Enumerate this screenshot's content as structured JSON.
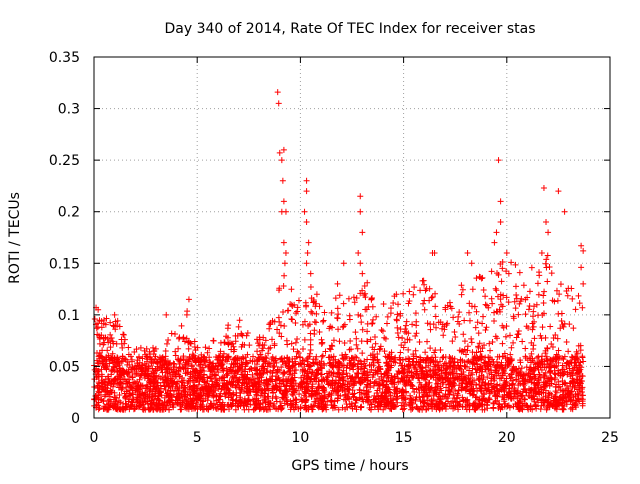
{
  "chart_data": {
    "type": "scatter",
    "title": "Day 340 of 2014, Rate Of TEC Index for receiver stas",
    "xlabel": "GPS time / hours",
    "ylabel": "ROTI / TECUs",
    "xlim": [
      0,
      25
    ],
    "ylim": [
      0,
      0.35
    ],
    "xticks": [
      0,
      5,
      10,
      15,
      20,
      25
    ],
    "xtick_labels": [
      "0",
      "5",
      "10",
      "15",
      "20",
      "25"
    ],
    "yticks": [
      0,
      0.05,
      0.1,
      0.15,
      0.2,
      0.25,
      0.3,
      0.35
    ],
    "ytick_labels": [
      "0",
      "0.05",
      "0.1",
      "0.15",
      "0.2",
      "0.25",
      "0.3",
      "0.35"
    ],
    "grid": true,
    "marker": "+",
    "color": "#ff0000",
    "series": [
      {
        "name": "ROTI",
        "x_range": [
          0,
          23.7
        ],
        "baseline_range": [
          0.01,
          0.06
        ],
        "envelope": [
          [
            0.0,
            0.1
          ],
          [
            0.5,
            0.09
          ],
          [
            1.0,
            0.09
          ],
          [
            1.5,
            0.08
          ],
          [
            2.0,
            0.06
          ],
          [
            3.0,
            0.06
          ],
          [
            4.0,
            0.08
          ],
          [
            4.5,
            0.1
          ],
          [
            5.0,
            0.06
          ],
          [
            6.0,
            0.07
          ],
          [
            7.0,
            0.09
          ],
          [
            8.0,
            0.07
          ],
          [
            8.7,
            0.1
          ],
          [
            9.0,
            0.14
          ],
          [
            9.5,
            0.12
          ],
          [
            10.0,
            0.12
          ],
          [
            10.5,
            0.12
          ],
          [
            11.0,
            0.1
          ],
          [
            12.0,
            0.13
          ],
          [
            12.5,
            0.12
          ],
          [
            13.0,
            0.13
          ],
          [
            14.0,
            0.11
          ],
          [
            15.0,
            0.12
          ],
          [
            16.0,
            0.13
          ],
          [
            17.0,
            0.1
          ],
          [
            18.0,
            0.13
          ],
          [
            19.0,
            0.13
          ],
          [
            20.0,
            0.15
          ],
          [
            21.0,
            0.14
          ],
          [
            22.0,
            0.15
          ],
          [
            23.0,
            0.12
          ],
          [
            23.7,
            0.11
          ]
        ],
        "points": [
          [
            8.9,
            0.316
          ],
          [
            8.95,
            0.305
          ],
          [
            9.0,
            0.257
          ],
          [
            9.1,
            0.25
          ],
          [
            9.2,
            0.26
          ],
          [
            9.15,
            0.23
          ],
          [
            9.2,
            0.21
          ],
          [
            9.3,
            0.2
          ],
          [
            9.1,
            0.2
          ],
          [
            9.2,
            0.17
          ],
          [
            9.25,
            0.15
          ],
          [
            9.3,
            0.16
          ],
          [
            10.3,
            0.23
          ],
          [
            10.3,
            0.22
          ],
          [
            10.2,
            0.2
          ],
          [
            10.3,
            0.19
          ],
          [
            10.4,
            0.17
          ],
          [
            10.35,
            0.16
          ],
          [
            10.3,
            0.15
          ],
          [
            10.5,
            0.14
          ],
          [
            10.8,
            0.12
          ],
          [
            12.9,
            0.215
          ],
          [
            12.9,
            0.2
          ],
          [
            13.0,
            0.18
          ],
          [
            12.8,
            0.16
          ],
          [
            12.9,
            0.15
          ],
          [
            13.0,
            0.14
          ],
          [
            12.1,
            0.15
          ],
          [
            11.8,
            0.13
          ],
          [
            16.4,
            0.16
          ],
          [
            16.5,
            0.16
          ],
          [
            18.1,
            0.16
          ],
          [
            18.3,
            0.15
          ],
          [
            19.6,
            0.25
          ],
          [
            19.7,
            0.21
          ],
          [
            19.7,
            0.19
          ],
          [
            19.5,
            0.18
          ],
          [
            19.4,
            0.17
          ],
          [
            20.0,
            0.16
          ],
          [
            20.1,
            0.14
          ],
          [
            21.8,
            0.223
          ],
          [
            22.5,
            0.22
          ],
          [
            21.9,
            0.19
          ],
          [
            22.0,
            0.18
          ],
          [
            21.7,
            0.16
          ],
          [
            22.8,
            0.2
          ],
          [
            23.6,
            0.167
          ],
          [
            23.7,
            0.162
          ],
          [
            23.6,
            0.146
          ],
          [
            23.7,
            0.13
          ],
          [
            4.6,
            0.115
          ],
          [
            0.1,
            0.107
          ],
          [
            0.2,
            0.105
          ],
          [
            1.0,
            0.1
          ],
          [
            3.5,
            0.1
          ],
          [
            4.5,
            0.1
          ],
          [
            8.0,
            0.07
          ],
          [
            7.2,
            0.08
          ],
          [
            6.5,
            0.09
          ]
        ]
      }
    ]
  }
}
